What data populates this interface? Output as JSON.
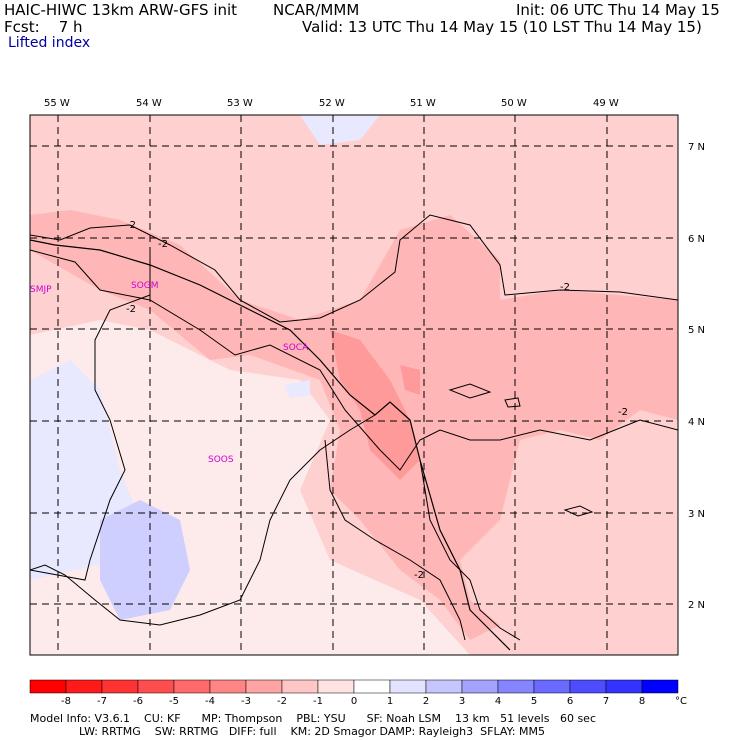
{
  "header": {
    "title_left": "HAIC-HIWC 13km ARW-GFS init",
    "title_center": "NCAR/MMM",
    "forecast": "Fcst:    7 h",
    "init": "Init: 06 UTC Thu 14 May 15",
    "valid": "Valid: 13 UTC Thu 14 May 15 (10 LST Thu 14 May 15)",
    "field": "Lifted index"
  },
  "map": {
    "lon_labels": [
      "55 W",
      "54 W",
      "53 W",
      "52 W",
      "51 W",
      "50 W",
      "49 W"
    ],
    "lat_labels": [
      "7 N",
      "6 N",
      "5 N",
      "4 N",
      "3 N",
      "2 N"
    ],
    "stations": [
      "SMJP",
      "SOGM",
      "SOCA",
      "SOOS"
    ],
    "contour_labels": [
      "-2",
      "-2",
      "-2",
      "-2",
      "-2",
      "-2"
    ]
  },
  "colorbar": {
    "ticks": [
      "-8",
      "-7",
      "-6",
      "-5",
      "-4",
      "-3",
      "-2",
      "-1",
      "0",
      "1",
      "2",
      "3",
      "4",
      "5",
      "6",
      "7",
      "8"
    ],
    "unit": "°C",
    "colors": [
      "#ff0000",
      "#ff1a1a",
      "#ff3333",
      "#ff4d4d",
      "#ff6a6a",
      "#ff8585",
      "#ffa3a3",
      "#ffc6c6",
      "#ffe3e3",
      "#ffffff",
      "#e3e3ff",
      "#c6c6ff",
      "#a3a3ff",
      "#8585ff",
      "#6a6aff",
      "#4d4dff",
      "#3333ff",
      "#0000ff"
    ]
  },
  "footer": {
    "line1": "Model Info: V3.6.1    CU: KF      MP: Thompson    PBL: YSU      SF: Noah LSM    13 km   51 levels   60 sec",
    "line2": "              LW: RRTMG    SW: RRTMG   DIFF: full    KM: 2D Smagor DAMP: Rayleigh3  SFLAY: MM5"
  }
}
